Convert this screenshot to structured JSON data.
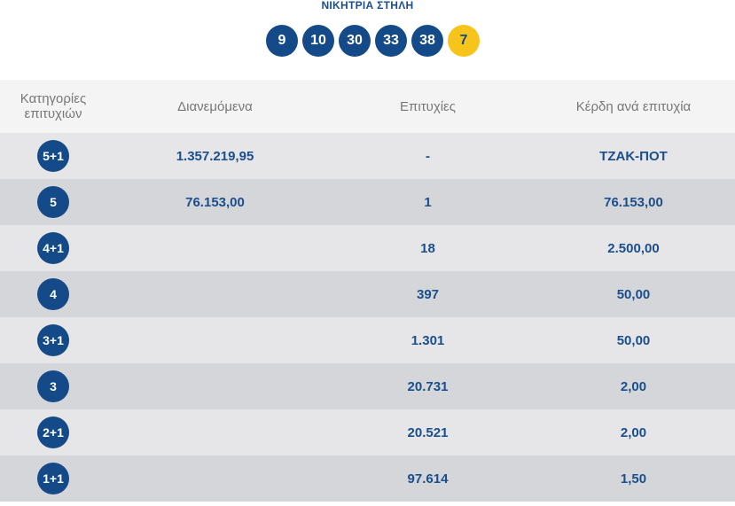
{
  "header": {
    "title": "ΝΙΚΗΤΡΙΑ ΣΤΗΛΗ",
    "numbers": [
      "9",
      "10",
      "30",
      "33",
      "38"
    ],
    "joker": "7"
  },
  "table": {
    "columns": [
      "Κατηγορίες επιτυχιών",
      "Διανεμόμενα",
      "Επιτυχίες",
      "Κέρδη ανά επιτυχία"
    ],
    "rows": [
      {
        "category": "5+1",
        "distributed": "1.357.219,95",
        "winners": "-",
        "prize": "ΤΖΑΚ-ΠΟΤ"
      },
      {
        "category": "5",
        "distributed": "76.153,00",
        "winners": "1",
        "prize": "76.153,00"
      },
      {
        "category": "4+1",
        "distributed": "",
        "winners": "18",
        "prize": "2.500,00"
      },
      {
        "category": "4",
        "distributed": "",
        "winners": "397",
        "prize": "50,00"
      },
      {
        "category": "3+1",
        "distributed": "",
        "winners": "1.301",
        "prize": "50,00"
      },
      {
        "category": "3",
        "distributed": "",
        "winners": "20.731",
        "prize": "2,00"
      },
      {
        "category": "2+1",
        "distributed": "",
        "winners": "20.521",
        "prize": "2,00"
      },
      {
        "category": "1+1",
        "distributed": "",
        "winners": "97.614",
        "prize": "1,50"
      }
    ]
  },
  "colors": {
    "primary_blue": "#144a88",
    "joker_yellow": "#f7c41b",
    "row_light": "#e6e6e8",
    "row_dark": "#d5d6d9",
    "header_bg": "#f4f4f4"
  }
}
